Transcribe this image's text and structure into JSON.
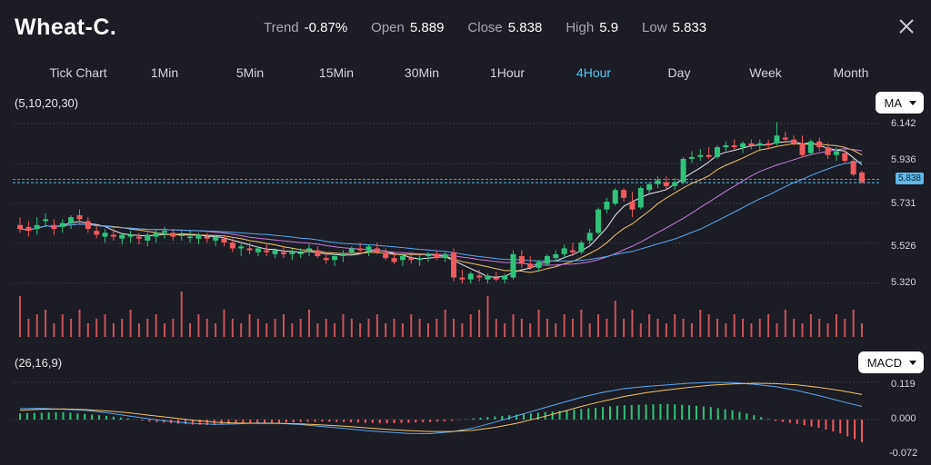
{
  "header": {
    "title": "Wheat-C.",
    "trend_label": "Trend",
    "trend_value": "-0.87%",
    "open_label": "Open",
    "open_value": "5.889",
    "close_label": "Close",
    "close_value": "5.838",
    "high_label": "High",
    "high_value": "5.9",
    "low_label": "Low",
    "low_value": "5.833"
  },
  "tabs": [
    {
      "label": "Tick Chart"
    },
    {
      "label": "1Min"
    },
    {
      "label": "5Min"
    },
    {
      "label": "15Min"
    },
    {
      "label": "30Min"
    },
    {
      "label": "1Hour"
    },
    {
      "label": "4Hour",
      "active": true
    },
    {
      "label": "Day"
    },
    {
      "label": "Week"
    },
    {
      "label": "Month"
    }
  ],
  "main_panel": {
    "params": "(5,10,20,30)",
    "indicator": "MA",
    "y_labels": [
      "6.142",
      "5.936",
      "5.731",
      "5.526",
      "5.320"
    ],
    "current_price": "5.838"
  },
  "macd_panel": {
    "params": "(26,16,9)",
    "indicator": "MACD",
    "y_labels": [
      "0.119",
      "0.000",
      "-0.072"
    ]
  },
  "colors": {
    "up": "#2fc27a",
    "down": "#f05a5f",
    "ma5": "#e9e9ef",
    "ma10": "#f2c46b",
    "ma20": "#c77ddc",
    "ma30": "#5aa7f0",
    "active_tab": "#58c8f0"
  },
  "chart_data": {
    "type": "candlestick",
    "timeframe": "4Hour",
    "ohlc": [
      [
        5.62,
        5.66,
        5.58,
        5.6
      ],
      [
        5.61,
        5.64,
        5.56,
        5.59
      ],
      [
        5.6,
        5.66,
        5.57,
        5.62
      ],
      [
        5.64,
        5.68,
        5.61,
        5.65
      ],
      [
        5.62,
        5.65,
        5.57,
        5.6
      ],
      [
        5.61,
        5.65,
        5.58,
        5.63
      ],
      [
        5.63,
        5.67,
        5.6,
        5.66
      ],
      [
        5.67,
        5.7,
        5.63,
        5.65
      ],
      [
        5.64,
        5.66,
        5.58,
        5.6
      ],
      [
        5.59,
        5.62,
        5.55,
        5.57
      ],
      [
        5.56,
        5.6,
        5.53,
        5.58
      ],
      [
        5.57,
        5.6,
        5.54,
        5.56
      ],
      [
        5.55,
        5.58,
        5.52,
        5.57
      ],
      [
        5.56,
        5.59,
        5.53,
        5.57
      ],
      [
        5.56,
        5.58,
        5.52,
        5.55
      ],
      [
        5.54,
        5.58,
        5.51,
        5.57
      ],
      [
        5.56,
        5.6,
        5.53,
        5.58
      ],
      [
        5.58,
        5.61,
        5.55,
        5.59
      ],
      [
        5.58,
        5.6,
        5.54,
        5.56
      ],
      [
        5.57,
        5.59,
        5.54,
        5.57
      ],
      [
        5.56,
        5.59,
        5.53,
        5.56
      ],
      [
        5.55,
        5.58,
        5.52,
        5.57
      ],
      [
        5.56,
        5.58,
        5.53,
        5.55
      ],
      [
        5.54,
        5.57,
        5.51,
        5.56
      ],
      [
        5.55,
        5.57,
        5.51,
        5.53
      ],
      [
        5.53,
        5.55,
        5.48,
        5.5
      ],
      [
        5.5,
        5.53,
        5.46,
        5.51
      ],
      [
        5.5,
        5.53,
        5.47,
        5.49
      ],
      [
        5.48,
        5.51,
        5.46,
        5.5
      ],
      [
        5.49,
        5.52,
        5.46,
        5.48
      ],
      [
        5.47,
        5.5,
        5.45,
        5.49
      ],
      [
        5.48,
        5.51,
        5.45,
        5.47
      ],
      [
        5.47,
        5.5,
        5.44,
        5.48
      ],
      [
        5.47,
        5.5,
        5.45,
        5.48
      ],
      [
        5.49,
        5.52,
        5.46,
        5.5
      ],
      [
        5.49,
        5.51,
        5.45,
        5.46
      ],
      [
        5.45,
        5.48,
        5.42,
        5.44
      ],
      [
        5.44,
        5.47,
        5.41,
        5.46
      ],
      [
        5.46,
        5.49,
        5.43,
        5.47
      ],
      [
        5.48,
        5.51,
        5.46,
        5.5
      ],
      [
        5.5,
        5.53,
        5.47,
        5.49
      ],
      [
        5.49,
        5.52,
        5.46,
        5.51
      ],
      [
        5.5,
        5.53,
        5.47,
        5.48
      ],
      [
        5.48,
        5.5,
        5.44,
        5.45
      ],
      [
        5.45,
        5.48,
        5.42,
        5.43
      ],
      [
        5.44,
        5.47,
        5.41,
        5.46
      ],
      [
        5.45,
        5.48,
        5.42,
        5.44
      ],
      [
        5.44,
        5.47,
        5.41,
        5.45
      ],
      [
        5.46,
        5.48,
        5.43,
        5.47
      ],
      [
        5.47,
        5.49,
        5.44,
        5.45
      ],
      [
        5.45,
        5.48,
        5.43,
        5.47
      ],
      [
        5.48,
        5.5,
        5.33,
        5.35
      ],
      [
        5.35,
        5.39,
        5.32,
        5.34
      ],
      [
        5.34,
        5.38,
        5.32,
        5.37
      ],
      [
        5.36,
        5.39,
        5.33,
        5.35
      ],
      [
        5.34,
        5.37,
        5.32,
        5.36
      ],
      [
        5.35,
        5.38,
        5.33,
        5.34
      ],
      [
        5.34,
        5.37,
        5.32,
        5.36
      ],
      [
        5.35,
        5.49,
        5.34,
        5.47
      ],
      [
        5.46,
        5.49,
        5.4,
        5.42
      ],
      [
        5.42,
        5.46,
        5.39,
        5.4
      ],
      [
        5.4,
        5.44,
        5.38,
        5.43
      ],
      [
        5.42,
        5.47,
        5.41,
        5.46
      ],
      [
        5.45,
        5.49,
        5.43,
        5.47
      ],
      [
        5.47,
        5.52,
        5.45,
        5.5
      ],
      [
        5.49,
        5.53,
        5.46,
        5.48
      ],
      [
        5.48,
        5.54,
        5.47,
        5.53
      ],
      [
        5.54,
        5.6,
        5.52,
        5.58
      ],
      [
        5.58,
        5.71,
        5.57,
        5.7
      ],
      [
        5.7,
        5.76,
        5.68,
        5.74
      ],
      [
        5.73,
        5.81,
        5.72,
        5.8
      ],
      [
        5.8,
        5.81,
        5.74,
        5.76
      ],
      [
        5.74,
        5.79,
        5.66,
        5.7
      ],
      [
        5.71,
        5.82,
        5.7,
        5.81
      ],
      [
        5.8,
        5.84,
        5.78,
        5.83
      ],
      [
        5.83,
        5.87,
        5.81,
        5.85
      ],
      [
        5.84,
        5.87,
        5.8,
        5.82
      ],
      [
        5.82,
        5.86,
        5.8,
        5.84
      ],
      [
        5.84,
        5.97,
        5.83,
        5.96
      ],
      [
        5.96,
        6.0,
        5.94,
        5.97
      ],
      [
        5.97,
        6.01,
        5.95,
        5.98
      ],
      [
        5.98,
        6.02,
        5.96,
        5.97
      ],
      [
        5.97,
        6.03,
        5.96,
        6.02
      ],
      [
        6.02,
        6.05,
        6.0,
        6.03
      ],
      [
        6.03,
        6.06,
        6.01,
        6.02
      ],
      [
        6.02,
        6.05,
        5.99,
        6.04
      ],
      [
        6.04,
        6.06,
        6.01,
        6.03
      ],
      [
        6.03,
        6.06,
        6.0,
        6.04
      ],
      [
        6.04,
        6.06,
        6.01,
        6.03
      ],
      [
        6.04,
        6.15,
        6.03,
        6.08
      ],
      [
        6.07,
        6.1,
        6.04,
        6.06
      ],
      [
        6.06,
        6.08,
        6.03,
        6.04
      ],
      [
        6.04,
        6.08,
        5.97,
        5.98
      ],
      [
        5.99,
        6.06,
        5.98,
        6.05
      ],
      [
        6.05,
        6.07,
        6.0,
        6.02
      ],
      [
        6.02,
        6.04,
        5.96,
        5.98
      ],
      [
        5.98,
        6.02,
        5.95,
        6.0
      ],
      [
        5.99,
        6.01,
        5.94,
        5.95
      ],
      [
        5.95,
        5.96,
        5.87,
        5.88
      ],
      [
        5.89,
        5.9,
        5.83,
        5.84
      ]
    ],
    "volume": [
      0.9,
      0.4,
      0.5,
      0.6,
      0.3,
      0.5,
      0.4,
      0.6,
      0.3,
      0.4,
      0.5,
      0.3,
      0.4,
      0.6,
      0.3,
      0.4,
      0.5,
      0.3,
      0.4,
      1.0,
      0.3,
      0.5,
      0.4,
      0.3,
      0.6,
      0.4,
      0.3,
      0.5,
      0.4,
      0.3,
      0.4,
      0.5,
      0.3,
      0.4,
      0.6,
      0.3,
      0.4,
      0.3,
      0.5,
      0.4,
      0.3,
      0.4,
      0.5,
      0.3,
      0.4,
      0.3,
      0.5,
      0.4,
      0.3,
      0.4,
      0.6,
      0.4,
      0.3,
      0.5,
      0.6,
      0.9,
      0.4,
      0.3,
      0.5,
      0.4,
      0.3,
      0.6,
      0.4,
      0.3,
      0.5,
      0.4,
      0.6,
      0.3,
      0.5,
      0.4,
      0.8,
      0.4,
      0.6,
      0.3,
      0.5,
      0.4,
      0.3,
      0.5,
      0.4,
      0.3,
      0.6,
      0.5,
      0.4,
      0.3,
      0.5,
      0.4,
      0.3,
      0.4,
      0.5,
      0.3,
      0.6,
      0.4,
      0.3,
      0.5,
      0.4,
      0.3,
      0.5,
      0.4,
      0.6,
      0.3
    ],
    "macd": {
      "ylim": [
        -0.085,
        0.135
      ],
      "dif": [
        0.035,
        0.036,
        0.033,
        0.03,
        0.022,
        0.012,
        0.002,
        -0.006,
        -0.012,
        -0.015,
        -0.014,
        -0.011,
        -0.012,
        -0.016,
        -0.022,
        -0.028,
        -0.035,
        -0.04,
        -0.044,
        -0.045,
        -0.039,
        -0.027,
        -0.008,
        0.012,
        0.032,
        0.052,
        0.071,
        0.087,
        0.099,
        0.106,
        0.111,
        0.116,
        0.119,
        0.118,
        0.113,
        0.105,
        0.093,
        0.077,
        0.059,
        0.042
      ],
      "dea": [
        0.03,
        0.033,
        0.034,
        0.032,
        0.028,
        0.022,
        0.014,
        0.006,
        -0.002,
        -0.008,
        -0.011,
        -0.012,
        -0.012,
        -0.014,
        -0.017,
        -0.021,
        -0.026,
        -0.031,
        -0.035,
        -0.038,
        -0.038,
        -0.034,
        -0.025,
        -0.012,
        0.005,
        0.023,
        0.042,
        0.059,
        0.074,
        0.086,
        0.095,
        0.103,
        0.11,
        0.114,
        0.116,
        0.115,
        0.111,
        0.103,
        0.093,
        0.08
      ],
      "hist": [
        0.02,
        0.022,
        0.024,
        0.018,
        0.012,
        0.004,
        -0.006,
        -0.012,
        -0.016,
        -0.018,
        -0.014,
        -0.012,
        -0.01,
        -0.008,
        -0.006,
        -0.008,
        -0.01,
        -0.012,
        -0.01,
        -0.008,
        -0.004,
        0.004,
        0.01,
        0.016,
        0.022,
        0.028,
        0.034,
        0.04,
        0.046,
        0.048,
        0.05,
        0.046,
        0.04,
        0.03,
        0.014,
        -0.004,
        -0.014,
        -0.026,
        -0.044,
        -0.072
      ]
    }
  }
}
